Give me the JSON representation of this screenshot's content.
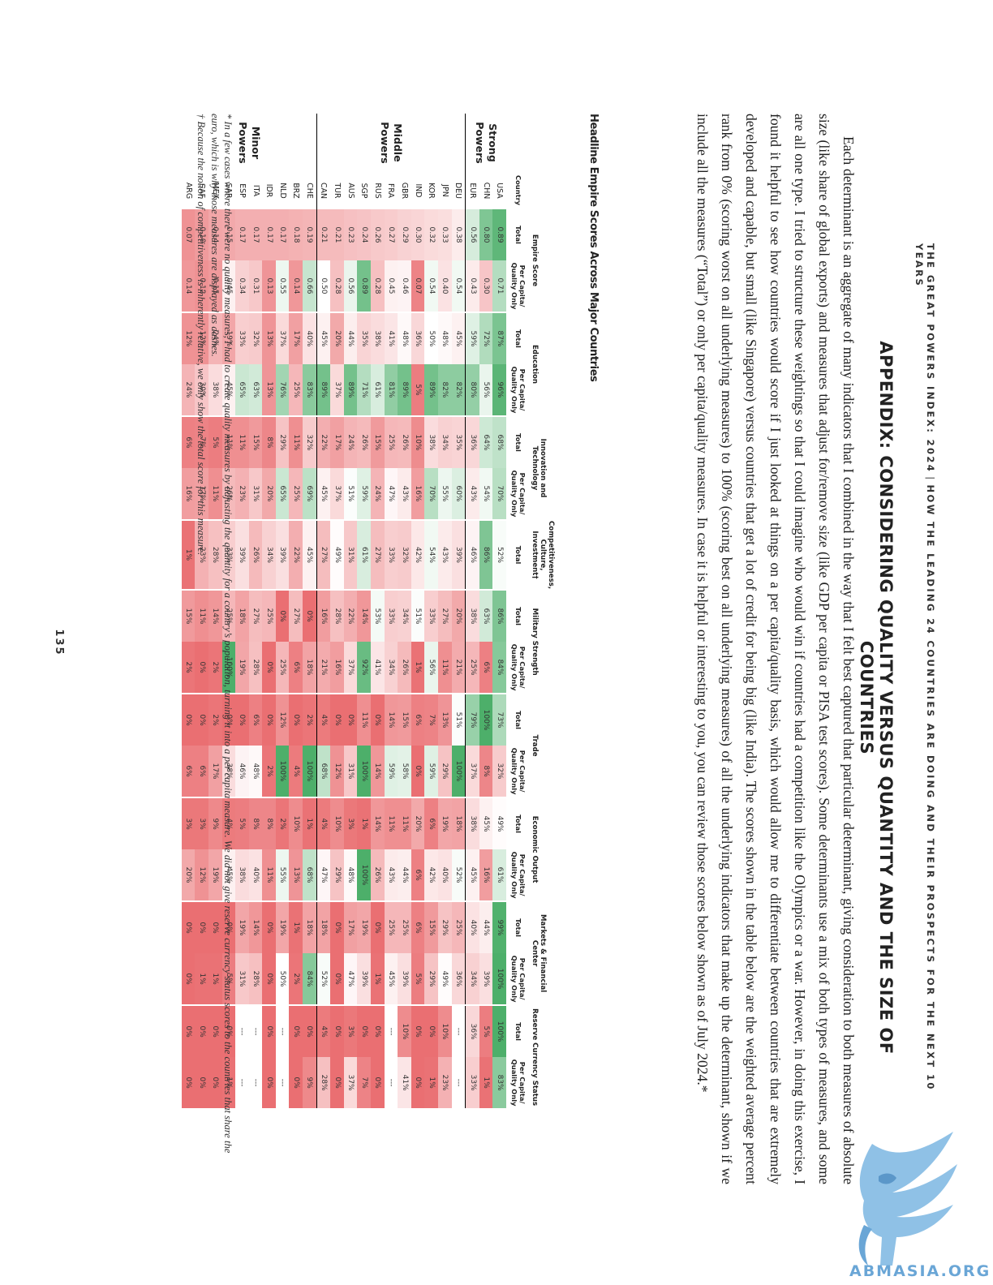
{
  "header": {
    "left": "THE GREAT POWERS INDEX: 2024",
    "sep": "|",
    "right": "HOW THE LEADING 24 COUNTRIES ARE DOING AND THEIR PROSPECTS FOR THE NEXT 10 YEARS"
  },
  "title": "APPENDIX: CONSIDERING QUALITY VERSUS QUANTITY AND THE SIZE OF COUNTRIES",
  "paragraph": "Each determinant is an aggregate of many indicators that I combined in the way that I felt best captured that particular determinant, giving consideration to both measures of absolute size (like share of global exports) and measures that adjust for/remove size (like GDP per capita or PISA test scores). Some determinants use a mix of both types of measures, and some are all one type. I tried to structure these weightings so that I could imagine who would win if countries had a competition like the Olympics or a war. However, in doing this exercise, I found it helpful to see how countries would score if I just looked at things on a per capita/quality basis, which would allow me to differentiate between countries that are extremely developed and capable, but small (like Singapore) versus countries that get a lot of credit for being big (like India). The scores shown in the table below are the weighted average percent rank from 0% (scoring worst on all underlying measures) to 100% (scoring best on all underlying measures) of all the underlying indicators that make up the determinant, shown if we include all the measures (“Total”) or only per capita/quality measures. In case it is helpful or interesting to you, you can review those scores below shown as of July 2024.*",
  "table": {
    "title": "Headline Empire Scores Across Major Countries",
    "country_label": "Country",
    "groups": [
      {
        "label": "Empire Score",
        "subs": [
          "Total",
          "Per Capita/ Quality Only"
        ]
      },
      {
        "label": "Education",
        "subs": [
          "Total",
          "Per Capita/ Quality Only"
        ]
      },
      {
        "label": "Innovation and Technology",
        "subs": [
          "Total",
          "Per Capita/ Quality Only"
        ]
      },
      {
        "label": "Competitiveness, Culture, Investment†",
        "subs": [
          "Total"
        ]
      },
      {
        "label": "Military Strength",
        "subs": [
          "Total",
          "Per Capita/ Quality Only"
        ]
      },
      {
        "label": "Trade",
        "subs": [
          "Total",
          "Per Capita/ Quality Only"
        ]
      },
      {
        "label": "Economic Output",
        "subs": [
          "Total",
          "Per Capita/ Quality Only"
        ]
      },
      {
        "label": "Markets & Financial Center",
        "subs": [
          "Total",
          "Per Capita/ Quality Only"
        ]
      },
      {
        "label": "Reserve Currency Status",
        "subs": [
          "Total",
          "Per Capita/ Quality Only"
        ]
      }
    ],
    "sections": [
      {
        "label": "Strong Powers",
        "rows": [
          {
            "c": "USA",
            "v": [
              "0.89",
              "0.71",
              "87%",
              "96%",
              "68%",
              "70%",
              "52%",
              "86%",
              "84%",
              "73%",
              "32%",
              "49%",
              "61%",
              "99%",
              "100%",
              "100%",
              "83%"
            ]
          },
          {
            "c": "CHN",
            "v": [
              "0.80",
              "0.30",
              "72%",
              "56%",
              "64%",
              "54%",
              "86%",
              "63%",
              "6%",
              "100%",
              "8%",
              "45%",
              "16%",
              "44%",
              "39%",
              "5%",
              "1%"
            ]
          },
          {
            "c": "EUR",
            "v": [
              "0.56",
              "0.43",
              "59%",
              "80%",
              "36%",
              "43%",
              "46%",
              "38%",
              "25%",
              "79%",
              "37%",
              "38%",
              "45%",
              "40%",
              "34%",
              "36%",
              "33%"
            ]
          }
        ]
      },
      {
        "label": "Middle Powers",
        "rows": [
          {
            "c": "DEU",
            "v": [
              "0.38",
              "0.54",
              "45%",
              "82%",
              "35%",
              "60%",
              "39%",
              "20%",
              "21%",
              "51%",
              "100%",
              "18%",
              "52%",
              "25%",
              "36%",
              "---",
              "---"
            ]
          },
          {
            "c": "JPN",
            "v": [
              "0.33",
              "0.40",
              "48%",
              "82%",
              "34%",
              "55%",
              "43%",
              "27%",
              "11%",
              "13%",
              "29%",
              "19%",
              "40%",
              "29%",
              "49%",
              "10%",
              "23%"
            ]
          },
          {
            "c": "KOR",
            "v": [
              "0.32",
              "0.54",
              "50%",
              "89%",
              "38%",
              "70%",
              "54%",
              "33%",
              "56%",
              "7%",
              "59%",
              "6%",
              "42%",
              "15%",
              "29%",
              "0%",
              "1%"
            ]
          },
          {
            "c": "IND",
            "v": [
              "0.30",
              "0.07",
              "36%",
              "5%",
              "10%",
              "16%",
              "42%",
              "51%",
              "1%",
              "6%",
              "0%",
              "20%",
              "6%",
              "6%",
              "5%",
              "0%",
              "0%"
            ]
          },
          {
            "c": "GBR",
            "v": [
              "0.29",
              "0.46",
              "48%",
              "89%",
              "26%",
              "43%",
              "32%",
              "34%",
              "26%",
              "15%",
              "58%",
              "11%",
              "44%",
              "25%",
              "39%",
              "10%",
              "41%"
            ]
          },
          {
            "c": "FRA",
            "v": [
              "0.27",
              "0.45",
              "41%",
              "81%",
              "25%",
              "47%",
              "33%",
              "33%",
              "34%",
              "14%",
              "59%",
              "11%",
              "43%",
              "25%",
              "45%",
              "---",
              "---"
            ]
          },
          {
            "c": "RUS",
            "v": [
              "0.26",
              "0.28",
              "38%",
              "61%",
              "15%",
              "24%",
              "27%",
              "53%",
              "41%",
              "0%",
              "14%",
              "14%",
              "26%",
              "0%",
              "1%",
              "0%",
              "0%"
            ]
          },
          {
            "c": "SGP",
            "v": [
              "0.24",
              "0.89",
              "35%",
              "71%",
              "26%",
              "59%",
              "61%",
              "14%",
              "92%",
              "11%",
              "100%",
              "1%",
              "100%",
              "19%",
              "39%",
              "0%",
              "7%"
            ]
          },
          {
            "c": "AUS",
            "v": [
              "0.23",
              "0.56",
              "44%",
              "89%",
              "24%",
              "51%",
              "31%",
              "22%",
              "37%",
              "0%",
              "31%",
              "3%",
              "48%",
              "17%",
              "47%",
              "3%",
              "37%"
            ]
          },
          {
            "c": "TUR",
            "v": [
              "0.21",
              "0.28",
              "20%",
              "37%",
              "17%",
              "37%",
              "49%",
              "28%",
              "16%",
              "0%",
              "12%",
              "10%",
              "29%",
              "0%",
              "0%",
              "0%",
              "0%"
            ]
          },
          {
            "c": "CAN",
            "v": [
              "0.21",
              "0.50",
              "45%",
              "89%",
              "22%",
              "45%",
              "27%",
              "16%",
              "21%",
              "4%",
              "68%",
              "4%",
              "47%",
              "18%",
              "52%",
              "4%",
              "28%"
            ]
          }
        ]
      },
      {
        "label": "Minor Powers",
        "rows": [
          {
            "c": "CHE",
            "v": [
              "0.19",
              "0.66",
              "40%",
              "83%",
              "32%",
              "69%",
              "45%",
              "0%",
              "18%",
              "2%",
              "100%",
              "1%",
              "68%",
              "18%",
              "84%",
              "0%",
              "9%"
            ]
          },
          {
            "c": "BRZ",
            "v": [
              "0.18",
              "0.14",
              "17%",
              "25%",
              "11%",
              "25%",
              "22%",
              "27%",
              "6%",
              "0%",
              "4%",
              "10%",
              "13%",
              "1%",
              "2%",
              "0%",
              "0%"
            ]
          },
          {
            "c": "NLD",
            "v": [
              "0.17",
              "0.55",
              "37%",
              "76%",
              "29%",
              "65%",
              "39%",
              "0%",
              "25%",
              "12%",
              "100%",
              "2%",
              "55%",
              "19%",
              "50%",
              "---",
              "---"
            ]
          },
          {
            "c": "IDR",
            "v": [
              "0.17",
              "0.13",
              "13%",
              "13%",
              "8%",
              "20%",
              "34%",
              "25%",
              "0%",
              "0%",
              "2%",
              "8%",
              "11%",
              "0%",
              "0%",
              "0%",
              "0%"
            ]
          },
          {
            "c": "ITA",
            "v": [
              "0.17",
              "0.31",
              "32%",
              "63%",
              "15%",
              "31%",
              "26%",
              "27%",
              "28%",
              "6%",
              "48%",
              "8%",
              "40%",
              "14%",
              "28%",
              "---",
              "---"
            ]
          },
          {
            "c": "ESP",
            "v": [
              "0.17",
              "0.34",
              "33%",
              "65%",
              "11%",
              "23%",
              "39%",
              "18%",
              "19%",
              "0%",
              "46%",
              "5%",
              "38%",
              "19%",
              "31%",
              "---",
              "---"
            ]
          },
          {
            "c": "SAR",
            "v": [
              "0.15",
              "0.45",
              "19%",
              "45%",
              "11%",
              "26%",
              "33%",
              "25%",
              "100%",
              "0%",
              "38%",
              "4%",
              "45%",
              "0%",
              "5%",
              "0%",
              "1%"
            ]
          },
          {
            "c": "MEX",
            "v": [
              "0.14",
              "0.15",
              "24%",
              "38%",
              "5%",
              "11%",
              "28%",
              "14%",
              "2%",
              "2%",
              "17%",
              "9%",
              "19%",
              "0%",
              "1%",
              "0%",
              "0%"
            ]
          },
          {
            "c": "SAF",
            "v": [
              "0.10",
              "0.12",
              "12%",
              "30%",
              "7%",
              "17%",
              "23%",
              "11%",
              "0%",
              "0%",
              "6%",
              "3%",
              "12%",
              "0%",
              "1%",
              "0%",
              "0%"
            ]
          },
          {
            "c": "ARG",
            "v": [
              "0.07",
              "0.14",
              "12%",
              "24%",
              "6%",
              "16%",
              "1%",
              "15%",
              "2%",
              "0%",
              "6%",
              "3%",
              "20%",
              "0%",
              "0%",
              "0%",
              "0%"
            ]
          }
        ]
      }
    ]
  },
  "footnotes": [
    "* In a few cases where there were no quality measures, I had to create quality measures by adjusting the quantity for a country’s population, turning it into a per capita measure. We did not give reserve currency status scores to the countries that share the euro, which is why those measures are displayed as dashes.",
    "† Because the notion of competitiveness is inherently relative, we only show the total score for this measure."
  ],
  "page_number": "135",
  "logo_text": "ABMASIA.ORG",
  "colors": {
    "good": "#4daf6a",
    "mid": "#ffffff",
    "bad": "#ea6f72"
  }
}
